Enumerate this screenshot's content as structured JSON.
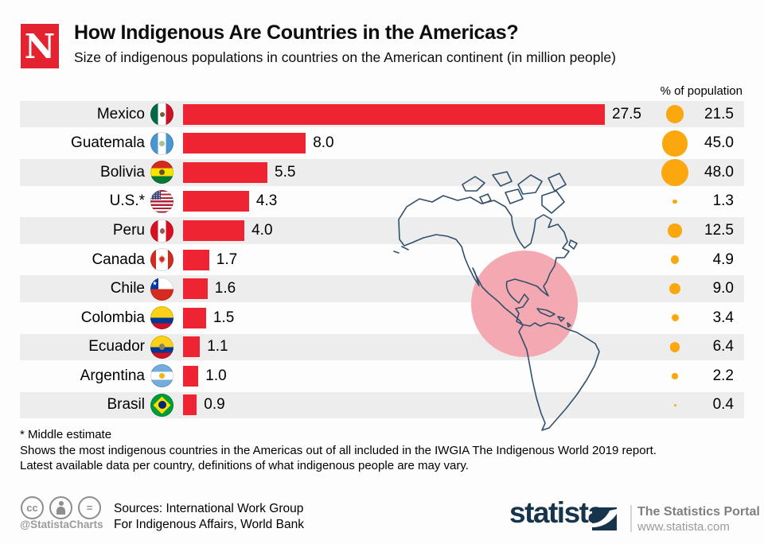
{
  "header": {
    "brand_letter": "N",
    "title": "How Indigenous Are Countries in the Americas?",
    "subtitle": "Size of indigenous populations in countries on the American continent (in million people)"
  },
  "columns": {
    "percent_header": "% of population"
  },
  "chart_data": {
    "type": "bar",
    "orientation": "horizontal",
    "title": "How Indigenous Are Countries in the Americas?",
    "unit": "million people",
    "categories": [
      "Mexico",
      "Guatemala",
      "Bolivia",
      "U.S.*",
      "Peru",
      "Canada",
      "Chile",
      "Colombia",
      "Ecuador",
      "Argentina",
      "Brasil"
    ],
    "series": [
      {
        "name": "Indigenous population (million people)",
        "values": [
          27.5,
          8,
          5.5,
          4.3,
          4,
          1.7,
          1.6,
          1.5,
          1.1,
          1,
          0.9
        ]
      },
      {
        "name": "% of population",
        "values": [
          21.5,
          45,
          48,
          1.3,
          12.5,
          4.9,
          9,
          3.4,
          6.4,
          2.2,
          0.4
        ]
      }
    ],
    "value_labels": [
      "27.5",
      "8.0",
      "5.5",
      "4.3",
      "4.0",
      "1.7",
      "1.6",
      "1.5",
      "1.1",
      "1.0",
      "0.9"
    ],
    "percent_labels": [
      "21.5",
      "45.0",
      "48.0",
      "1.3",
      "12.5",
      "4.9",
      "9.0",
      "3.4",
      "6.4",
      "2.2",
      "0.4"
    ],
    "flags": [
      "mexico",
      "guatemala",
      "bolivia",
      "us",
      "peru",
      "canada",
      "chile",
      "colombia",
      "ecuador",
      "argentina",
      "brasil"
    ],
    "xlim": [
      0,
      28.5
    ],
    "grid": false,
    "legend_position": "none",
    "bar_color": "#ee2433",
    "dot_color": "#fba70d",
    "row_stripe_color": "#ededed"
  },
  "map": {
    "name": "americas-outline",
    "outline_color": "#32506b",
    "highlight_color": "#f4a9b2"
  },
  "footnotes": {
    "line1": "* Middle estimate",
    "line2": "Shows the most indigenous countries in the Americas out of all included in the IWGIA The Indigenous World 2019 report.",
    "line3": "Latest available data per country, definitions of what indigenous people are may vary."
  },
  "footer": {
    "cc_handle": "@StatistaCharts",
    "sources_line1": "Sources: International Work Group",
    "sources_line2": "For Indigenous Affairs, World Bank",
    "statista_wordmark": "statista",
    "portal_title": "The Statistics Portal",
    "portal_url": "www.statista.com"
  }
}
